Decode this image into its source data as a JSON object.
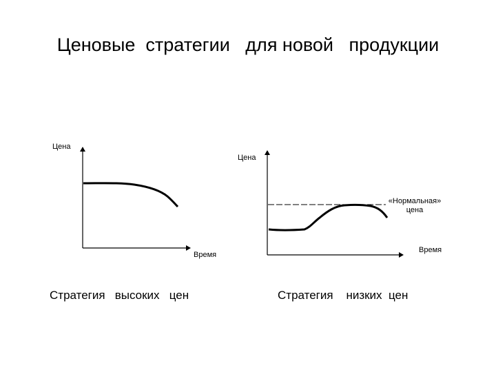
{
  "title": "Ценовые  стратегии   для новой   продукции",
  "left": {
    "y_label": "Цена",
    "x_label": "Время",
    "caption": "Стратегия   высоких   цен"
  },
  "right": {
    "y_label": "Цена",
    "x_label": "Время",
    "caption": "Стратегия    низких  цен",
    "normal_price_line1": "«Нормальная»",
    "normal_price_line2": "цена"
  },
  "colors": {
    "ink": "#000000",
    "background": "#ffffff"
  }
}
